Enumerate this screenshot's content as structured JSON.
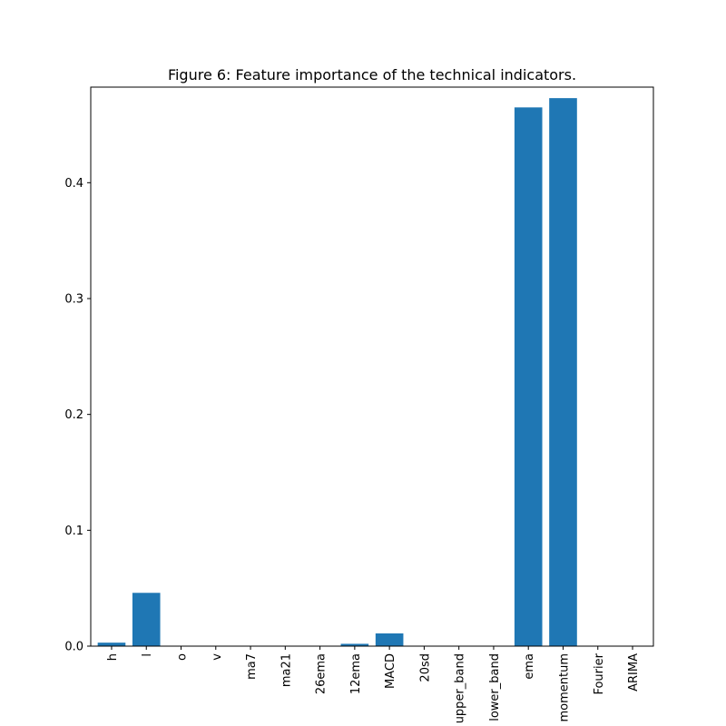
{
  "chart_data": {
    "type": "bar",
    "title": "Figure 6: Feature importance of the technical indicators.",
    "xlabel": "",
    "ylabel": "",
    "categories": [
      "h",
      "l",
      "o",
      "v",
      "ma7",
      "ma21",
      "26ema",
      "12ema",
      "MACD",
      "20sd",
      "upper_band",
      "lower_band",
      "ema",
      "momentum",
      "Fourier",
      "ARIMA"
    ],
    "values": [
      0.003,
      0.046,
      0.0,
      0.0,
      0.0,
      0.0,
      0.0,
      0.002,
      0.011,
      0.0,
      0.0,
      0.0,
      0.465,
      0.473,
      0.0,
      0.0
    ],
    "ylim": [
      0,
      0.4825
    ],
    "yticks": [
      0.0,
      0.1,
      0.2,
      0.3,
      0.4
    ],
    "ytick_labels": [
      "0.0",
      "0.1",
      "0.2",
      "0.3",
      "0.4"
    ],
    "bar_color": "#1f77b4",
    "grid": false,
    "legend": "none"
  }
}
